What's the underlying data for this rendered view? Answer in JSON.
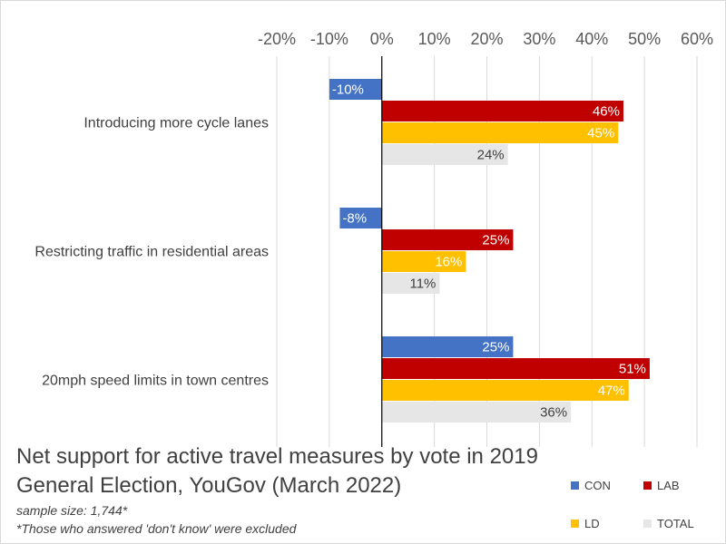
{
  "chart_data": {
    "type": "bar",
    "orientation": "horizontal",
    "title": "Net support for active travel measures by vote in 2019 General Election, YouGov (March 2022)",
    "notes": [
      "sample size: 1,744*",
      "*Those who answered 'don't know' were excluded"
    ],
    "categories": [
      "Introducing more cycle lanes",
      "Restricting traffic in residential areas",
      "20mph speed limits in town centres"
    ],
    "series": [
      {
        "name": "CON",
        "color": "#4472c4",
        "label_color": "#ffffff",
        "values": [
          -10,
          -8,
          25
        ]
      },
      {
        "name": "LAB",
        "color": "#c00000",
        "label_color": "#ffffff",
        "values": [
          46,
          25,
          51
        ]
      },
      {
        "name": "LD",
        "color": "#ffc000",
        "label_color": "#ffffff",
        "values": [
          45,
          16,
          47
        ]
      },
      {
        "name": "TOTAL",
        "color": "#e7e6e6",
        "label_color": "#404040",
        "values": [
          24,
          11,
          36
        ]
      }
    ],
    "xlim": [
      -20,
      60
    ],
    "ticks": [
      -20,
      -10,
      0,
      10,
      20,
      30,
      40,
      50,
      60
    ],
    "tick_labels": [
      "-20%",
      "-10%",
      "0%",
      "10%",
      "20%",
      "30%",
      "40%",
      "50%",
      "60%"
    ],
    "grid": true,
    "axis_position": "top",
    "legend_position": "bottom-right"
  }
}
